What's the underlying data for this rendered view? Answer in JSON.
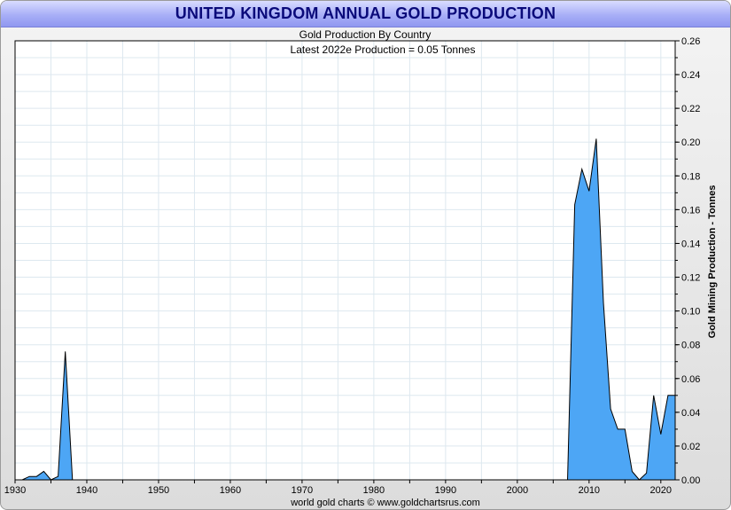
{
  "chart_data": {
    "type": "area",
    "title": "UNITED KINGDOM ANNUAL GOLD PRODUCTION",
    "subtitle": "Gold Production By Country",
    "annotation": "Latest 2022e  Production = 0.05 Tonnes",
    "ylabel": "Gold Mining Production - Tonnes",
    "footer": "world gold charts © www.goldchartsrus.com",
    "xlim": [
      1930,
      2022
    ],
    "ylim": [
      0,
      0.26
    ],
    "x_ticks": [
      1930,
      1940,
      1950,
      1960,
      1970,
      1980,
      1990,
      2000,
      2010,
      2020
    ],
    "y_ticks": [
      "0.00",
      "0.02",
      "0.04",
      "0.06",
      "0.08",
      "0.10",
      "0.12",
      "0.14",
      "0.16",
      "0.18",
      "0.20",
      "0.22",
      "0.24",
      "0.26"
    ],
    "grid": true,
    "fill_color": "#4da6f5",
    "line_color": "#000000",
    "x": [
      1930,
      1931,
      1932,
      1933,
      1934,
      1935,
      1936,
      1937,
      1938,
      1939,
      1940,
      2006,
      2007,
      2008,
      2009,
      2010,
      2011,
      2012,
      2013,
      2014,
      2015,
      2016,
      2017,
      2018,
      2019,
      2020,
      2021,
      2022
    ],
    "values": [
      0,
      0,
      0.002,
      0.002,
      0.005,
      0,
      0.002,
      0.076,
      0,
      0,
      0,
      0,
      0,
      0.163,
      0.184,
      0.171,
      0.202,
      0.105,
      0.042,
      0.03,
      0.03,
      0.005,
      0,
      0.004,
      0.05,
      0.027,
      0.05,
      0.05
    ]
  }
}
